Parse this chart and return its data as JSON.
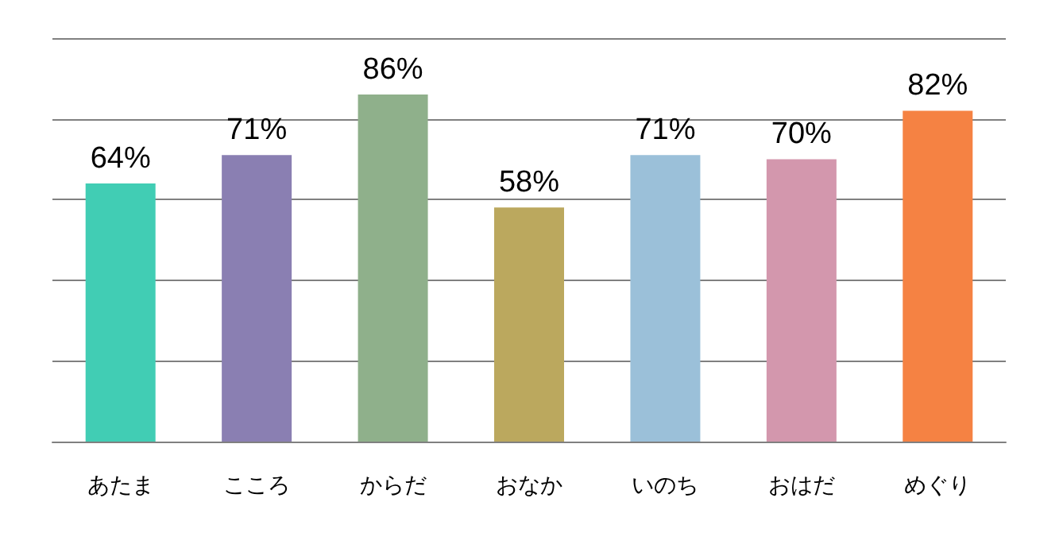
{
  "chart_data": {
    "type": "bar",
    "categories": [
      "あたま",
      "こころ",
      "からだ",
      "おなか",
      "いのち",
      "おはだ",
      "めぐり"
    ],
    "values": [
      64,
      71,
      86,
      58,
      71,
      70,
      82
    ],
    "colors": [
      "#41cdb4",
      "#8a7fb2",
      "#8fb08b",
      "#bba85e",
      "#9bc0d9",
      "#d397ad",
      "#f58243"
    ],
    "value_labels": [
      "64%",
      "71%",
      "86%",
      "58%",
      "71%",
      "70%",
      "82%"
    ],
    "ylim": [
      0,
      100
    ],
    "yticks": [
      {
        "value": 0,
        "label": null
      },
      {
        "value": 20,
        "label": null
      },
      {
        "value": 40,
        "label": null
      },
      {
        "value": 60,
        "label": null
      },
      {
        "value": 80,
        "label": null
      },
      {
        "value": 100,
        "label": null
      }
    ],
    "grid": "y",
    "tick_labels": "x"
  }
}
